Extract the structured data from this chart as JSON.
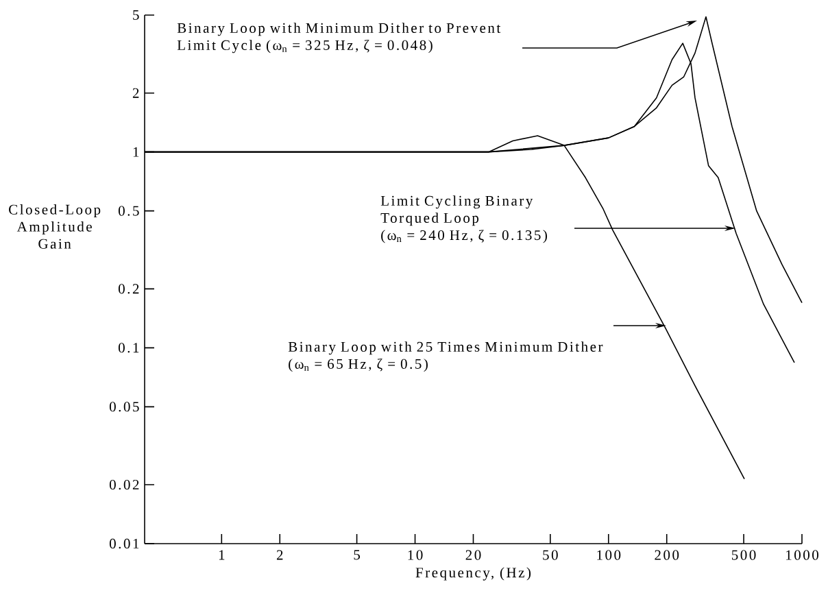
{
  "chart_data": {
    "type": "line",
    "xlabel": "Frequency, (Hz)",
    "ylabel": "Closed-Loop Amplitude Gain",
    "log": "xy",
    "xlim": [
      0.4,
      1000
    ],
    "ylim": [
      0.01,
      5
    ],
    "xticks": [
      1,
      2,
      5,
      10,
      20,
      50,
      100,
      200,
      500,
      1000
    ],
    "yticks": [
      0.01,
      0.02,
      0.05,
      0.1,
      0.2,
      0.5,
      1,
      2,
      5
    ],
    "series": [
      {
        "color": "#000000",
        "x": [
          0.4,
          24,
          40,
          59,
          100,
          136,
          177,
          213,
          245,
          280,
          319,
          343,
          435,
          583,
          789,
          1000
        ],
        "values": [
          1.0,
          1.0,
          1.03,
          1.08,
          1.18,
          1.35,
          1.68,
          2.19,
          2.42,
          3.2,
          4.9,
          3.6,
          1.35,
          0.5,
          0.266,
          0.17
        ]
      },
      {
        "color": "#000000",
        "x": [
          0.4,
          24,
          59,
          100,
          136,
          177,
          213,
          242,
          267,
          280,
          329,
          369,
          457,
          633,
          914
        ],
        "values": [
          1.0,
          1.0,
          1.08,
          1.18,
          1.35,
          1.89,
          2.96,
          3.59,
          2.82,
          1.89,
          0.85,
          0.74,
          0.384,
          0.167,
          0.084
        ]
      },
      {
        "color": "#000000",
        "x": [
          0.4,
          24,
          32,
          43,
          59,
          76,
          94,
          105,
          197,
          280,
          504
        ],
        "values": [
          1.0,
          1.0,
          1.14,
          1.21,
          1.08,
          0.74,
          0.51,
          0.4,
          0.126,
          0.064,
          0.0214
        ]
      }
    ],
    "annotations": [
      "Binary Loop with Minimum Dither to Prevent Limit Cycle (ω$_{n}$ = 325 Hz, ζ = 0.048)",
      "Limit Cycling Binary Torqued Loop",
      "(ω$_{n}$ = 240 Hz, ζ = 0.135)",
      "Binary Loop with 25 Times Minimum Dither (ω$_{n}$ = 65 Hz, ζ = 0.5)"
    ]
  }
}
